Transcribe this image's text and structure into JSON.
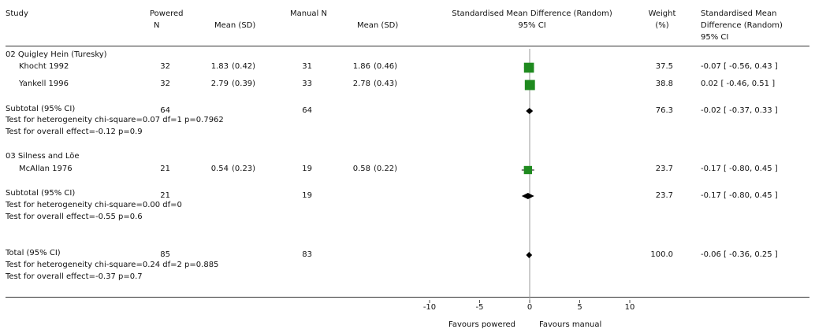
{
  "header": {
    "study": "Study",
    "powered_n_1": "Powered",
    "powered_n_2": "N",
    "powered_mean": "Mean (SD)",
    "manual_n": "Manual N",
    "manual_mean": "Mean (SD)",
    "smd_1": "Standardised Mean Difference (Random)",
    "smd_2": "95% CI",
    "weight_1": "Weight",
    "weight_2": "(%)",
    "smd_col_1": "Standardised Mean",
    "smd_col_2": "Difference (Random)",
    "smd_col_3": "95% CI"
  },
  "groups": [
    {
      "title": "02 Quigley Hein (Turesky)",
      "studies": [
        {
          "name": "Khocht 1992",
          "p_n": "32",
          "p_mean": "1.83",
          "p_sd": "(0.42)",
          "m_n": "31",
          "m_mean": "1.86",
          "m_sd": "(0.46)",
          "weight": "37.5",
          "ci_text": "-0.07 [ -0.56, 0.43 ]"
        },
        {
          "name": "Yankell 1996",
          "p_n": "32",
          "p_mean": "2.79",
          "p_sd": "(0.39)",
          "m_n": "33",
          "m_mean": "2.78",
          "m_sd": "(0.43)",
          "weight": "38.8",
          "ci_text": "0.02 [ -0.46, 0.51 ]"
        }
      ],
      "subtotal": {
        "label": "Subtotal (95% CI)",
        "p_n": "64",
        "m_n": "64",
        "weight": "76.3",
        "ci_text": "-0.02 [ -0.37, 0.33 ]"
      },
      "heterogeneity": "Test for heterogeneity chi-square=0.07 df=1 p=0.7962",
      "overall": "Test for overall effect=-0.12 p=0.9"
    },
    {
      "title": "03 Silness and Löe",
      "studies": [
        {
          "name": "McAllan 1976",
          "p_n": "21",
          "p_mean": "0.54",
          "p_sd": "(0.23)",
          "m_n": "19",
          "m_mean": "0.58",
          "m_sd": "(0.22)",
          "weight": "23.7",
          "ci_text": "-0.17 [ -0.80, 0.45 ]"
        }
      ],
      "subtotal": {
        "label": "Subtotal (95% CI)",
        "p_n": "21",
        "m_n": "19",
        "weight": "23.7",
        "ci_text": "-0.17 [ -0.80, 0.45 ]"
      },
      "heterogeneity": "Test for heterogeneity chi-square=0.00 df=0",
      "overall": "Test for overall effect=-0.55 p=0.6"
    }
  ],
  "total": {
    "label": "Total (95% CI)",
    "p_n": "85",
    "m_n": "83",
    "weight": "100.0",
    "ci_text": "-0.06 [ -0.36, 0.25 ]",
    "heterogeneity": "Test for heterogeneity chi-square=0.24 df=2 p=0.885",
    "overall": "Test for overall effect=-0.37 p=0.7"
  },
  "footer": {
    "favours_left": "Favours powered",
    "favours_right": "Favours manual"
  },
  "colors": {
    "study_marker": "#1f8a1f",
    "pooled_marker": "#000000",
    "axis": "#555555"
  },
  "chart_data": {
    "type": "forest",
    "xlim": [
      -10,
      10
    ],
    "ticks": [
      -10,
      -5,
      0,
      5,
      10
    ],
    "tick_labels": [
      "-10",
      "-5",
      "0",
      "5",
      "10"
    ],
    "studies": [
      {
        "name": "Khocht 1992",
        "smd": -0.07,
        "lo": -0.56,
        "hi": 0.43,
        "weight": 37.5
      },
      {
        "name": "Yankell 1996",
        "smd": 0.02,
        "lo": -0.46,
        "hi": 0.51,
        "weight": 38.8
      },
      {
        "name": "McAllan 1976",
        "smd": -0.17,
        "lo": -0.8,
        "hi": 0.45,
        "weight": 23.7
      }
    ],
    "pooled": [
      {
        "name": "Subtotal 02",
        "smd": -0.02,
        "lo": -0.37,
        "hi": 0.33
      },
      {
        "name": "Subtotal 03",
        "smd": -0.17,
        "lo": -0.8,
        "hi": 0.45
      },
      {
        "name": "Total",
        "smd": -0.06,
        "lo": -0.36,
        "hi": 0.25
      }
    ]
  }
}
